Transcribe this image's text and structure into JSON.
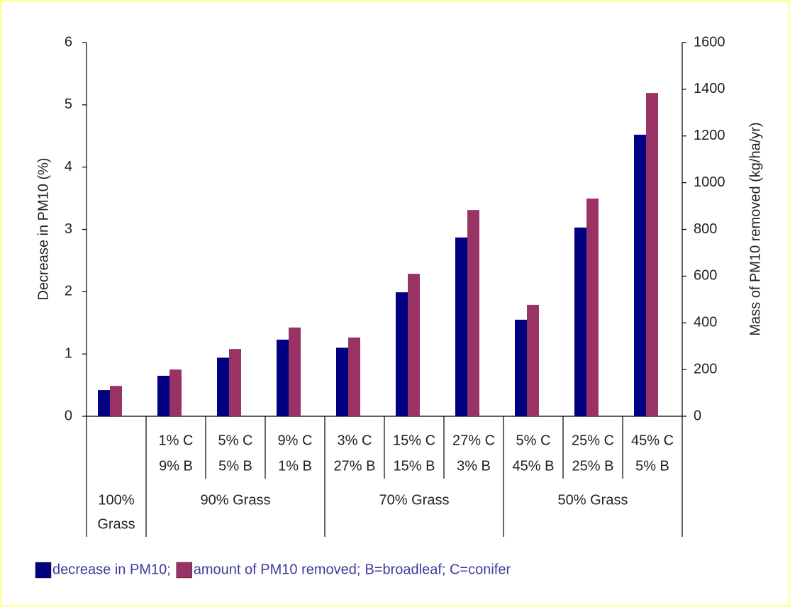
{
  "chart_data": {
    "type": "bar",
    "y_label": "Decrease in PM10 (%)",
    "y2_label": "Mass of PM10 removed (kg/ha/yr)",
    "categories": [
      null,
      [
        "1% C",
        "9% B"
      ],
      [
        "5% C",
        "5% B"
      ],
      [
        "9% C",
        "1% B"
      ],
      [
        "3% C",
        "27% B"
      ],
      [
        "15% C",
        "15% B"
      ],
      [
        "27% C",
        "3% B"
      ],
      [
        "5% C",
        "45% B"
      ],
      [
        "25% C",
        "25% B"
      ],
      [
        "45% C",
        "5% B"
      ]
    ],
    "groups": [
      {
        "name": [
          "100%",
          "Grass"
        ],
        "count": 1
      },
      {
        "name": [
          "90% Grass"
        ],
        "count": 3
      },
      {
        "name": [
          "70% Grass"
        ],
        "count": 3
      },
      {
        "name": [
          "50% Grass"
        ],
        "count": 3
      }
    ],
    "series": [
      {
        "name": "decrease in PM10;",
        "color": "#000080",
        "values": [
          0.42,
          0.65,
          0.94,
          1.23,
          1.1,
          1.99,
          2.87,
          1.55,
          3.03,
          4.52
        ]
      },
      {
        "name": "amount of PM10 removed;",
        "color": "#993366",
        "axis": "y2",
        "values": [
          130,
          200,
          288,
          380,
          337,
          610,
          883,
          477,
          932,
          1384
        ]
      }
    ],
    "legend_note": "B=broadleaf; C=conifer",
    "ylim": [
      0,
      6
    ],
    "yticks": [
      0,
      1,
      2,
      3,
      4,
      5,
      6
    ],
    "y2lim": [
      0,
      1600
    ],
    "y2ticks": [
      0,
      200,
      400,
      600,
      800,
      1000,
      1200,
      1400,
      1600
    ]
  }
}
